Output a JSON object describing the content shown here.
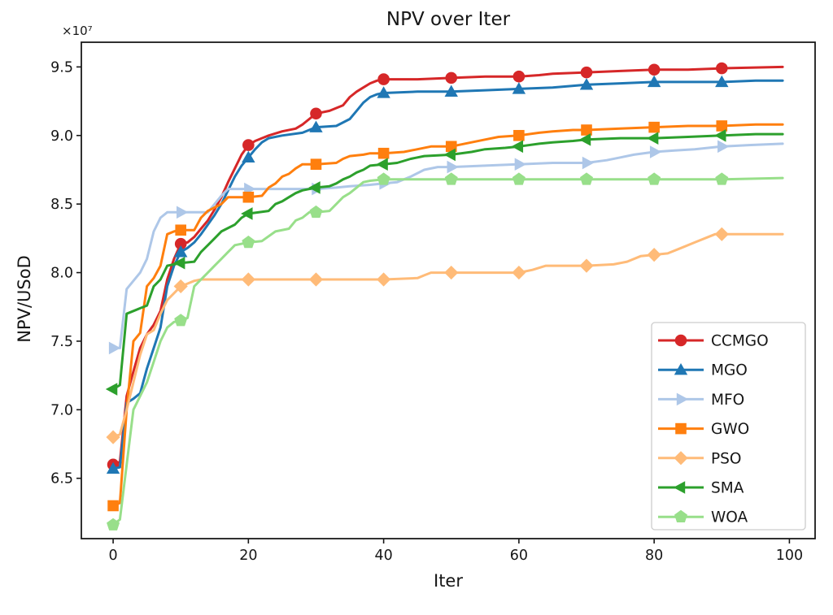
{
  "chart_data": {
    "type": "line",
    "title": "NPV over Iter",
    "xlabel": "Iter",
    "ylabel": "NPV/USoD",
    "y_offset_label": "×10⁷",
    "y_unit_factor": "1e7",
    "xlim": [
      -4.7,
      103.8
    ],
    "ylim": [
      6.06,
      9.68
    ],
    "xticks": [
      0,
      20,
      40,
      60,
      80,
      100
    ],
    "yticks": [
      6.5,
      7.0,
      7.5,
      8.0,
      8.5,
      9.0,
      9.5
    ],
    "grid": false,
    "legend_position": "lower right",
    "marker_every": 10,
    "series": [
      {
        "name": "CCMGO",
        "color": "#d62728",
        "marker": "circle",
        "points": [
          [
            0,
            6.6
          ],
          [
            1,
            6.62
          ],
          [
            2,
            7.1
          ],
          [
            3,
            7.28
          ],
          [
            4,
            7.45
          ],
          [
            5,
            7.55
          ],
          [
            6,
            7.62
          ],
          [
            7,
            7.72
          ],
          [
            8,
            7.95
          ],
          [
            9,
            8.1
          ],
          [
            10,
            8.21
          ],
          [
            11,
            8.22
          ],
          [
            12,
            8.26
          ],
          [
            13,
            8.32
          ],
          [
            14,
            8.38
          ],
          [
            15,
            8.46
          ],
          [
            16,
            8.55
          ],
          [
            17,
            8.66
          ],
          [
            18,
            8.76
          ],
          [
            19,
            8.86
          ],
          [
            20,
            8.93
          ],
          [
            21,
            8.96
          ],
          [
            22,
            8.98
          ],
          [
            23,
            9.0
          ],
          [
            25,
            9.03
          ],
          [
            27,
            9.05
          ],
          [
            28,
            9.08
          ],
          [
            29,
            9.12
          ],
          [
            30,
            9.16
          ],
          [
            32,
            9.18
          ],
          [
            34,
            9.22
          ],
          [
            35,
            9.28
          ],
          [
            36,
            9.32
          ],
          [
            37,
            9.35
          ],
          [
            38,
            9.38
          ],
          [
            39,
            9.4
          ],
          [
            40,
            9.41
          ],
          [
            45,
            9.41
          ],
          [
            50,
            9.42
          ],
          [
            55,
            9.43
          ],
          [
            60,
            9.43
          ],
          [
            63,
            9.44
          ],
          [
            65,
            9.45
          ],
          [
            70,
            9.46
          ],
          [
            75,
            9.47
          ],
          [
            80,
            9.48
          ],
          [
            85,
            9.48
          ],
          [
            90,
            9.49
          ],
          [
            99,
            9.5
          ]
        ]
      },
      {
        "name": "MGO",
        "color": "#1f77b4",
        "marker": "triangle-up",
        "points": [
          [
            0,
            6.57
          ],
          [
            1,
            6.58
          ],
          [
            2,
            7.05
          ],
          [
            3,
            7.08
          ],
          [
            4,
            7.12
          ],
          [
            5,
            7.3
          ],
          [
            6,
            7.45
          ],
          [
            7,
            7.6
          ],
          [
            8,
            7.9
          ],
          [
            9,
            8.05
          ],
          [
            10,
            8.15
          ],
          [
            11,
            8.18
          ],
          [
            12,
            8.22
          ],
          [
            13,
            8.28
          ],
          [
            14,
            8.35
          ],
          [
            15,
            8.42
          ],
          [
            16,
            8.5
          ],
          [
            17,
            8.6
          ],
          [
            18,
            8.7
          ],
          [
            19,
            8.78
          ],
          [
            20,
            8.84
          ],
          [
            21,
            8.9
          ],
          [
            22,
            8.95
          ],
          [
            23,
            8.98
          ],
          [
            25,
            9.0
          ],
          [
            28,
            9.02
          ],
          [
            30,
            9.06
          ],
          [
            33,
            9.07
          ],
          [
            35,
            9.12
          ],
          [
            36,
            9.18
          ],
          [
            37,
            9.24
          ],
          [
            38,
            9.28
          ],
          [
            39,
            9.3
          ],
          [
            40,
            9.31
          ],
          [
            45,
            9.32
          ],
          [
            50,
            9.32
          ],
          [
            55,
            9.33
          ],
          [
            60,
            9.34
          ],
          [
            65,
            9.35
          ],
          [
            70,
            9.37
          ],
          [
            75,
            9.38
          ],
          [
            80,
            9.39
          ],
          [
            90,
            9.39
          ],
          [
            95,
            9.4
          ],
          [
            99,
            9.4
          ]
        ]
      },
      {
        "name": "MFO",
        "color": "#aec7e8",
        "marker": "triangle-right",
        "points": [
          [
            0,
            7.45
          ],
          [
            1,
            7.45
          ],
          [
            2,
            7.88
          ],
          [
            3,
            7.94
          ],
          [
            4,
            8.0
          ],
          [
            5,
            8.1
          ],
          [
            6,
            8.3
          ],
          [
            7,
            8.4
          ],
          [
            8,
            8.44
          ],
          [
            10,
            8.44
          ],
          [
            14,
            8.44
          ],
          [
            15,
            8.5
          ],
          [
            16,
            8.56
          ],
          [
            17,
            8.61
          ],
          [
            20,
            8.61
          ],
          [
            25,
            8.61
          ],
          [
            30,
            8.61
          ],
          [
            33,
            8.62
          ],
          [
            35,
            8.63
          ],
          [
            38,
            8.64
          ],
          [
            40,
            8.65
          ],
          [
            42,
            8.66
          ],
          [
            44,
            8.7
          ],
          [
            46,
            8.75
          ],
          [
            48,
            8.77
          ],
          [
            50,
            8.77
          ],
          [
            55,
            8.78
          ],
          [
            60,
            8.79
          ],
          [
            65,
            8.8
          ],
          [
            70,
            8.8
          ],
          [
            73,
            8.82
          ],
          [
            75,
            8.84
          ],
          [
            77,
            8.86
          ],
          [
            80,
            8.88
          ],
          [
            83,
            8.89
          ],
          [
            86,
            8.9
          ],
          [
            88,
            8.91
          ],
          [
            90,
            8.92
          ],
          [
            94,
            8.93
          ],
          [
            99,
            8.94
          ]
        ]
      },
      {
        "name": "GWO",
        "color": "#ff7f0e",
        "marker": "square",
        "points": [
          [
            0,
            6.3
          ],
          [
            1,
            6.32
          ],
          [
            2,
            7.0
          ],
          [
            3,
            7.5
          ],
          [
            4,
            7.56
          ],
          [
            5,
            7.9
          ],
          [
            6,
            7.96
          ],
          [
            7,
            8.05
          ],
          [
            8,
            8.28
          ],
          [
            9,
            8.3
          ],
          [
            10,
            8.31
          ],
          [
            12,
            8.31
          ],
          [
            13,
            8.4
          ],
          [
            14,
            8.45
          ],
          [
            16,
            8.5
          ],
          [
            17,
            8.55
          ],
          [
            20,
            8.55
          ],
          [
            22,
            8.56
          ],
          [
            23,
            8.62
          ],
          [
            24,
            8.65
          ],
          [
            25,
            8.7
          ],
          [
            26,
            8.72
          ],
          [
            27,
            8.76
          ],
          [
            28,
            8.79
          ],
          [
            30,
            8.79
          ],
          [
            33,
            8.8
          ],
          [
            34,
            8.83
          ],
          [
            35,
            8.85
          ],
          [
            37,
            8.86
          ],
          [
            38,
            8.87
          ],
          [
            40,
            8.87
          ],
          [
            43,
            8.88
          ],
          [
            45,
            8.9
          ],
          [
            47,
            8.92
          ],
          [
            50,
            8.92
          ],
          [
            53,
            8.95
          ],
          [
            55,
            8.97
          ],
          [
            57,
            8.99
          ],
          [
            60,
            9.0
          ],
          [
            63,
            9.02
          ],
          [
            65,
            9.03
          ],
          [
            68,
            9.04
          ],
          [
            70,
            9.04
          ],
          [
            75,
            9.05
          ],
          [
            80,
            9.06
          ],
          [
            85,
            9.07
          ],
          [
            90,
            9.07
          ],
          [
            95,
            9.08
          ],
          [
            99,
            9.08
          ]
        ]
      },
      {
        "name": "PSO",
        "color": "#ffbb78",
        "marker": "diamond",
        "points": [
          [
            0,
            6.8
          ],
          [
            1,
            6.82
          ],
          [
            2,
            7.0
          ],
          [
            3,
            7.2
          ],
          [
            4,
            7.4
          ],
          [
            5,
            7.55
          ],
          [
            6,
            7.58
          ],
          [
            7,
            7.7
          ],
          [
            8,
            7.8
          ],
          [
            9,
            7.85
          ],
          [
            10,
            7.9
          ],
          [
            11,
            7.92
          ],
          [
            12,
            7.94
          ],
          [
            13,
            7.95
          ],
          [
            20,
            7.95
          ],
          [
            30,
            7.95
          ],
          [
            40,
            7.95
          ],
          [
            45,
            7.96
          ],
          [
            46,
            7.98
          ],
          [
            47,
            8.0
          ],
          [
            50,
            8.0
          ],
          [
            60,
            8.0
          ],
          [
            62,
            8.02
          ],
          [
            64,
            8.05
          ],
          [
            70,
            8.05
          ],
          [
            74,
            8.06
          ],
          [
            76,
            8.08
          ],
          [
            78,
            8.12
          ],
          [
            80,
            8.13
          ],
          [
            82,
            8.14
          ],
          [
            84,
            8.18
          ],
          [
            86,
            8.22
          ],
          [
            88,
            8.26
          ],
          [
            89,
            8.28
          ],
          [
            90,
            8.28
          ],
          [
            99,
            8.28
          ]
        ]
      },
      {
        "name": "SMA",
        "color": "#2ca02c",
        "marker": "triangle-left",
        "points": [
          [
            0,
            7.15
          ],
          [
            1,
            7.18
          ],
          [
            2,
            7.7
          ],
          [
            3,
            7.72
          ],
          [
            4,
            7.74
          ],
          [
            5,
            7.76
          ],
          [
            6,
            7.9
          ],
          [
            7,
            7.95
          ],
          [
            8,
            8.05
          ],
          [
            10,
            8.07
          ],
          [
            12,
            8.08
          ],
          [
            13,
            8.15
          ],
          [
            14,
            8.2
          ],
          [
            15,
            8.25
          ],
          [
            16,
            8.3
          ],
          [
            18,
            8.35
          ],
          [
            19,
            8.4
          ],
          [
            20,
            8.43
          ],
          [
            23,
            8.45
          ],
          [
            24,
            8.5
          ],
          [
            25,
            8.52
          ],
          [
            26,
            8.55
          ],
          [
            27,
            8.58
          ],
          [
            28,
            8.6
          ],
          [
            30,
            8.62
          ],
          [
            32,
            8.63
          ],
          [
            33,
            8.65
          ],
          [
            34,
            8.68
          ],
          [
            35,
            8.7
          ],
          [
            36,
            8.73
          ],
          [
            37,
            8.75
          ],
          [
            38,
            8.78
          ],
          [
            40,
            8.79
          ],
          [
            42,
            8.8
          ],
          [
            44,
            8.83
          ],
          [
            46,
            8.85
          ],
          [
            50,
            8.86
          ],
          [
            53,
            8.88
          ],
          [
            55,
            8.9
          ],
          [
            58,
            8.91
          ],
          [
            60,
            8.92
          ],
          [
            63,
            8.94
          ],
          [
            65,
            8.95
          ],
          [
            68,
            8.96
          ],
          [
            70,
            8.97
          ],
          [
            75,
            8.98
          ],
          [
            80,
            8.98
          ],
          [
            85,
            8.99
          ],
          [
            90,
            9.0
          ],
          [
            95,
            9.01
          ],
          [
            99,
            9.01
          ]
        ]
      },
      {
        "name": "WOA",
        "color": "#98df8a",
        "marker": "pentagon",
        "points": [
          [
            0,
            6.16
          ],
          [
            1,
            6.2
          ],
          [
            2,
            6.6
          ],
          [
            3,
            7.0
          ],
          [
            4,
            7.1
          ],
          [
            5,
            7.2
          ],
          [
            6,
            7.35
          ],
          [
            7,
            7.5
          ],
          [
            8,
            7.6
          ],
          [
            9,
            7.64
          ],
          [
            10,
            7.65
          ],
          [
            11,
            7.67
          ],
          [
            12,
            7.9
          ],
          [
            13,
            7.95
          ],
          [
            14,
            8.0
          ],
          [
            15,
            8.05
          ],
          [
            16,
            8.1
          ],
          [
            17,
            8.15
          ],
          [
            18,
            8.2
          ],
          [
            20,
            8.22
          ],
          [
            22,
            8.23
          ],
          [
            24,
            8.3
          ],
          [
            26,
            8.32
          ],
          [
            27,
            8.38
          ],
          [
            28,
            8.4
          ],
          [
            29,
            8.44
          ],
          [
            30,
            8.44
          ],
          [
            32,
            8.45
          ],
          [
            33,
            8.5
          ],
          [
            34,
            8.55
          ],
          [
            35,
            8.58
          ],
          [
            36,
            8.62
          ],
          [
            37,
            8.66
          ],
          [
            38,
            8.67
          ],
          [
            40,
            8.68
          ],
          [
            50,
            8.68
          ],
          [
            60,
            8.68
          ],
          [
            70,
            8.68
          ],
          [
            80,
            8.68
          ],
          [
            90,
            8.68
          ],
          [
            99,
            8.69
          ]
        ]
      }
    ]
  }
}
